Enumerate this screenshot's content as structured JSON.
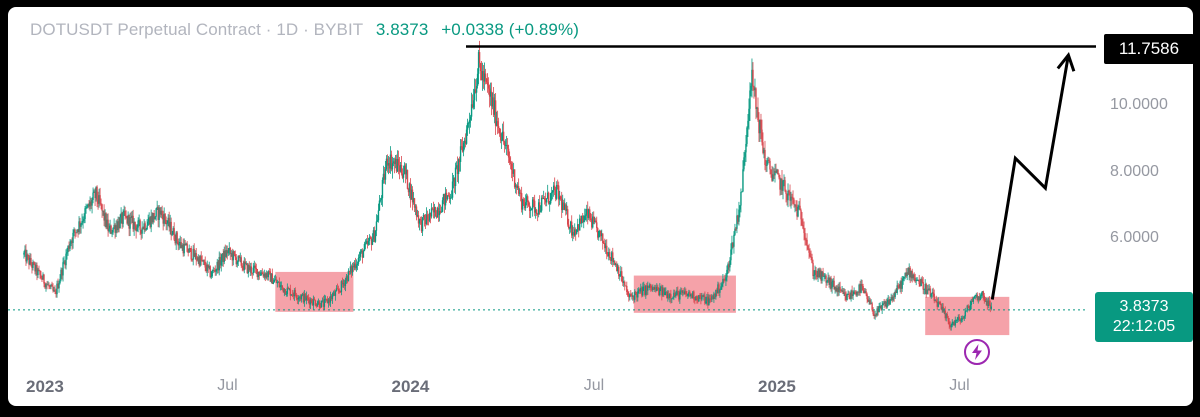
{
  "header": {
    "symbol": "DOTUSDT Perpetual Contract · 1D · BYBIT",
    "last_price": "3.8373",
    "change": "+0.0338 (+0.89%)"
  },
  "target_label": "11.7586",
  "price_box": {
    "price": "3.8373",
    "countdown": "22:12:05"
  },
  "colors": {
    "up": "#089981",
    "down": "#d8464d",
    "highlight": "#f28b93",
    "line": "#000000",
    "text": "#9598a1",
    "bolt": "#9c27b0"
  },
  "icons": {
    "alert": "lightning-icon"
  },
  "chart_data": {
    "type": "candlestick",
    "title": "DOTUSDT Perpetual Contract · 1D · BYBIT",
    "y_ticks": [
      "10.0000",
      "8.0000",
      "6.0000"
    ],
    "x_ticks": [
      {
        "label": "2023",
        "bold": true,
        "date": "2023-01-01"
      },
      {
        "label": "Jul",
        "bold": false,
        "date": "2023-07-01"
      },
      {
        "label": "2024",
        "bold": true,
        "date": "2024-01-01"
      },
      {
        "label": "Jul",
        "bold": false,
        "date": "2024-07-01"
      },
      {
        "label": "2025",
        "bold": true,
        "date": "2025-01-01"
      },
      {
        "label": "Jul",
        "bold": false,
        "date": "2025-07-01"
      }
    ],
    "current_price": 3.8373,
    "resistance_level": 11.7586,
    "price_path": [
      [
        "2022-12-10",
        5.5
      ],
      [
        "2022-12-25",
        4.9
      ],
      [
        "2023-01-10",
        4.3
      ],
      [
        "2023-01-25",
        5.9
      ],
      [
        "2023-02-10",
        6.8
      ],
      [
        "2023-02-20",
        7.3
      ],
      [
        "2023-03-05",
        6.2
      ],
      [
        "2023-03-20",
        6.6
      ],
      [
        "2023-04-05",
        6.3
      ],
      [
        "2023-04-25",
        6.8
      ],
      [
        "2023-05-15",
        5.8
      ],
      [
        "2023-06-05",
        5.3
      ],
      [
        "2023-06-15",
        4.9
      ],
      [
        "2023-07-01",
        5.6
      ],
      [
        "2023-07-20",
        5.1
      ],
      [
        "2023-08-10",
        4.9
      ],
      [
        "2023-08-25",
        4.5
      ],
      [
        "2023-09-15",
        4.2
      ],
      [
        "2023-10-05",
        4.0
      ],
      [
        "2023-10-20",
        4.4
      ],
      [
        "2023-11-05",
        5.2
      ],
      [
        "2023-11-25",
        6.1
      ],
      [
        "2023-12-08",
        8.4
      ],
      [
        "2023-12-25",
        8.0
      ],
      [
        "2024-01-10",
        6.4
      ],
      [
        "2024-01-25",
        6.8
      ],
      [
        "2024-02-10",
        7.4
      ],
      [
        "2024-02-25",
        9.2
      ],
      [
        "2024-03-08",
        11.2
      ],
      [
        "2024-03-20",
        10.2
      ],
      [
        "2024-04-05",
        8.6
      ],
      [
        "2024-04-20",
        7.1
      ],
      [
        "2024-05-05",
        6.9
      ],
      [
        "2024-05-25",
        7.4
      ],
      [
        "2024-06-10",
        6.2
      ],
      [
        "2024-06-25",
        6.7
      ],
      [
        "2024-07-10",
        5.9
      ],
      [
        "2024-07-25",
        5.1
      ],
      [
        "2024-08-05",
        4.2
      ],
      [
        "2024-08-25",
        4.5
      ],
      [
        "2024-09-15",
        4.3
      ],
      [
        "2024-10-05",
        4.3
      ],
      [
        "2024-10-25",
        4.1
      ],
      [
        "2024-11-10",
        4.8
      ],
      [
        "2024-11-25",
        7.2
      ],
      [
        "2024-12-05",
        10.9
      ],
      [
        "2024-12-20",
        8.2
      ],
      [
        "2025-01-05",
        7.6
      ],
      [
        "2025-01-25",
        6.6
      ],
      [
        "2025-02-05",
        5.0
      ],
      [
        "2025-02-20",
        4.7
      ],
      [
        "2025-03-10",
        4.2
      ],
      [
        "2025-03-25",
        4.5
      ],
      [
        "2025-04-08",
        3.7
      ],
      [
        "2025-04-25",
        4.2
      ],
      [
        "2025-05-12",
        5.0
      ],
      [
        "2025-05-28",
        4.5
      ],
      [
        "2025-06-10",
        4.0
      ],
      [
        "2025-06-22",
        3.4
      ],
      [
        "2025-07-05",
        3.6
      ],
      [
        "2025-07-15",
        4.2
      ],
      [
        "2025-07-25",
        4.3
      ],
      [
        "2025-08-02",
        3.84
      ]
    ],
    "highlight_zones": [
      {
        "from": "2023-08-18",
        "to": "2023-11-04",
        "low": 3.78,
        "high": 4.98
      },
      {
        "from": "2024-08-10",
        "to": "2024-11-20",
        "low": 3.75,
        "high": 4.87
      },
      {
        "from": "2025-05-28",
        "to": "2025-08-20",
        "low": 3.08,
        "high": 4.23
      }
    ],
    "projection": [
      [
        "2025-08-03",
        4.15
      ],
      [
        "2025-08-26",
        8.4
      ],
      [
        "2025-09-25",
        7.5
      ],
      [
        "2025-10-18",
        11.5
      ]
    ]
  }
}
